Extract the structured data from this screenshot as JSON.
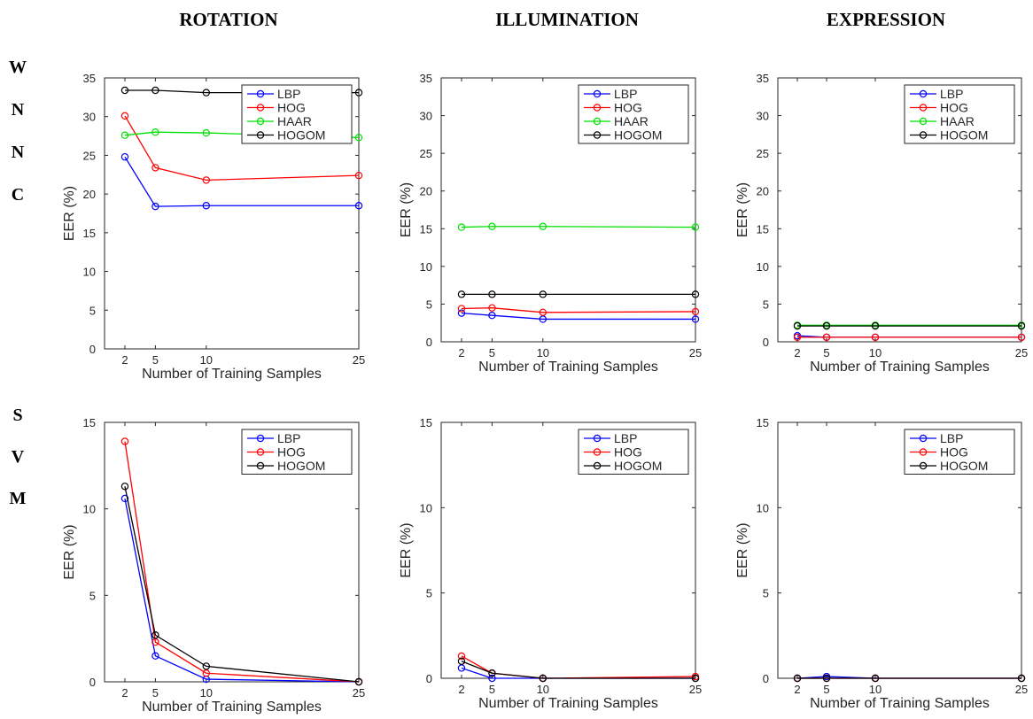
{
  "columns": [
    "ROTATION",
    "ILLUMINATION",
    "EXPRESSION"
  ],
  "row_labels": [
    {
      "letters": [
        "W",
        "N",
        "N",
        "C"
      ]
    },
    {
      "letters": [
        "S",
        "V",
        "M"
      ]
    }
  ],
  "colors": {
    "LBP": "#0000ff",
    "HOG": "#ff0000",
    "HAAR": "#00e000",
    "HOGOM": "#000000"
  },
  "chart_data": [
    {
      "type": "line",
      "xlabel": "Number of Training Samples",
      "ylabel": "EER (%)",
      "x": [
        2,
        5,
        10,
        25
      ],
      "xticks": [
        "2",
        "5",
        "10",
        "25"
      ],
      "ylim": [
        0,
        35
      ],
      "yticks": [
        "0",
        "5",
        "10",
        "15",
        "20",
        "25",
        "30",
        "35"
      ],
      "legend": "top-right",
      "series": [
        {
          "name": "LBP",
          "color": "#0000ff",
          "values": [
            24.8,
            18.4,
            18.5,
            18.5
          ]
        },
        {
          "name": "HOG",
          "color": "#ff0000",
          "values": [
            30.1,
            23.4,
            21.8,
            22.4
          ]
        },
        {
          "name": "HAAR",
          "color": "#00e000",
          "values": [
            27.6,
            28.0,
            27.9,
            27.3
          ]
        },
        {
          "name": "HOGOM",
          "color": "#000000",
          "values": [
            33.4,
            33.4,
            33.1,
            33.1
          ]
        }
      ]
    },
    {
      "type": "line",
      "xlabel": "Number of Training Samples",
      "ylabel": "EER (%)",
      "x": [
        2,
        5,
        10,
        25
      ],
      "xticks": [
        "2",
        "5",
        "10",
        "25"
      ],
      "ylim": [
        0,
        35
      ],
      "yticks": [
        "0",
        "5",
        "10",
        "15",
        "20",
        "25",
        "30",
        "35"
      ],
      "legend": "top-right",
      "series": [
        {
          "name": "LBP",
          "color": "#0000ff",
          "values": [
            3.8,
            3.5,
            3.0,
            3.0
          ]
        },
        {
          "name": "HOG",
          "color": "#ff0000",
          "values": [
            4.4,
            4.5,
            3.9,
            4.0
          ]
        },
        {
          "name": "HAAR",
          "color": "#00e000",
          "values": [
            15.2,
            15.3,
            15.3,
            15.2
          ]
        },
        {
          "name": "HOGOM",
          "color": "#000000",
          "values": [
            6.3,
            6.3,
            6.3,
            6.3
          ]
        }
      ]
    },
    {
      "type": "line",
      "xlabel": "Number of Training Samples",
      "ylabel": "EER (%)",
      "x": [
        2,
        5,
        10,
        25
      ],
      "xticks": [
        "2",
        "5",
        "10",
        "25"
      ],
      "ylim": [
        0,
        35
      ],
      "yticks": [
        "0",
        "5",
        "10",
        "15",
        "20",
        "25",
        "30",
        "35"
      ],
      "legend": "top-right",
      "series": [
        {
          "name": "LBP",
          "color": "#0000ff",
          "values": [
            0.8,
            0.6,
            0.6,
            0.6
          ]
        },
        {
          "name": "HOG",
          "color": "#ff0000",
          "values": [
            0.6,
            0.6,
            0.6,
            0.6
          ]
        },
        {
          "name": "HAAR",
          "color": "#00e000",
          "values": [
            2.2,
            2.2,
            2.2,
            2.2
          ]
        },
        {
          "name": "HOGOM",
          "color": "#000000",
          "values": [
            2.1,
            2.1,
            2.1,
            2.1
          ]
        }
      ]
    },
    {
      "type": "line",
      "xlabel": "Number of Training Samples",
      "ylabel": "EER (%)",
      "x": [
        2,
        5,
        10,
        25
      ],
      "xticks": [
        "2",
        "5",
        "10",
        "25"
      ],
      "ylim": [
        0,
        15
      ],
      "yticks": [
        "0",
        "5",
        "10",
        "15"
      ],
      "legend": "top-right",
      "series": [
        {
          "name": "LBP",
          "color": "#0000ff",
          "values": [
            10.6,
            1.5,
            0.15,
            0.0
          ]
        },
        {
          "name": "HOG",
          "color": "#ff0000",
          "values": [
            13.9,
            2.3,
            0.5,
            0.0
          ]
        },
        {
          "name": "HOGOM",
          "color": "#000000",
          "values": [
            11.3,
            2.7,
            0.9,
            0.0
          ]
        }
      ]
    },
    {
      "type": "line",
      "xlabel": "Number of Training Samples",
      "ylabel": "EER (%)",
      "x": [
        2,
        5,
        10,
        25
      ],
      "xticks": [
        "2",
        "5",
        "10",
        "25"
      ],
      "ylim": [
        0,
        15
      ],
      "yticks": [
        "0",
        "5",
        "10",
        "15"
      ],
      "legend": "top-right",
      "series": [
        {
          "name": "LBP",
          "color": "#0000ff",
          "values": [
            0.6,
            0.0,
            0.0,
            0.0
          ]
        },
        {
          "name": "HOG",
          "color": "#ff0000",
          "values": [
            1.3,
            0.3,
            0.0,
            0.1
          ]
        },
        {
          "name": "HOGOM",
          "color": "#000000",
          "values": [
            1.0,
            0.3,
            0.0,
            0.0
          ]
        }
      ]
    },
    {
      "type": "line",
      "xlabel": "Number of Training Samples",
      "ylabel": "EER (%)",
      "x": [
        2,
        5,
        10,
        25
      ],
      "xticks": [
        "2",
        "5",
        "10",
        "25"
      ],
      "ylim": [
        0,
        15
      ],
      "yticks": [
        "0",
        "5",
        "10",
        "15"
      ],
      "legend": "top-right",
      "series": [
        {
          "name": "LBP",
          "color": "#0000ff",
          "values": [
            0.0,
            0.1,
            0.0,
            0.0
          ]
        },
        {
          "name": "HOG",
          "color": "#ff0000",
          "values": [
            0.0,
            0.0,
            0.0,
            0.0
          ]
        },
        {
          "name": "HOGOM",
          "color": "#000000",
          "values": [
            0.0,
            0.0,
            0.0,
            0.0
          ]
        }
      ]
    }
  ]
}
